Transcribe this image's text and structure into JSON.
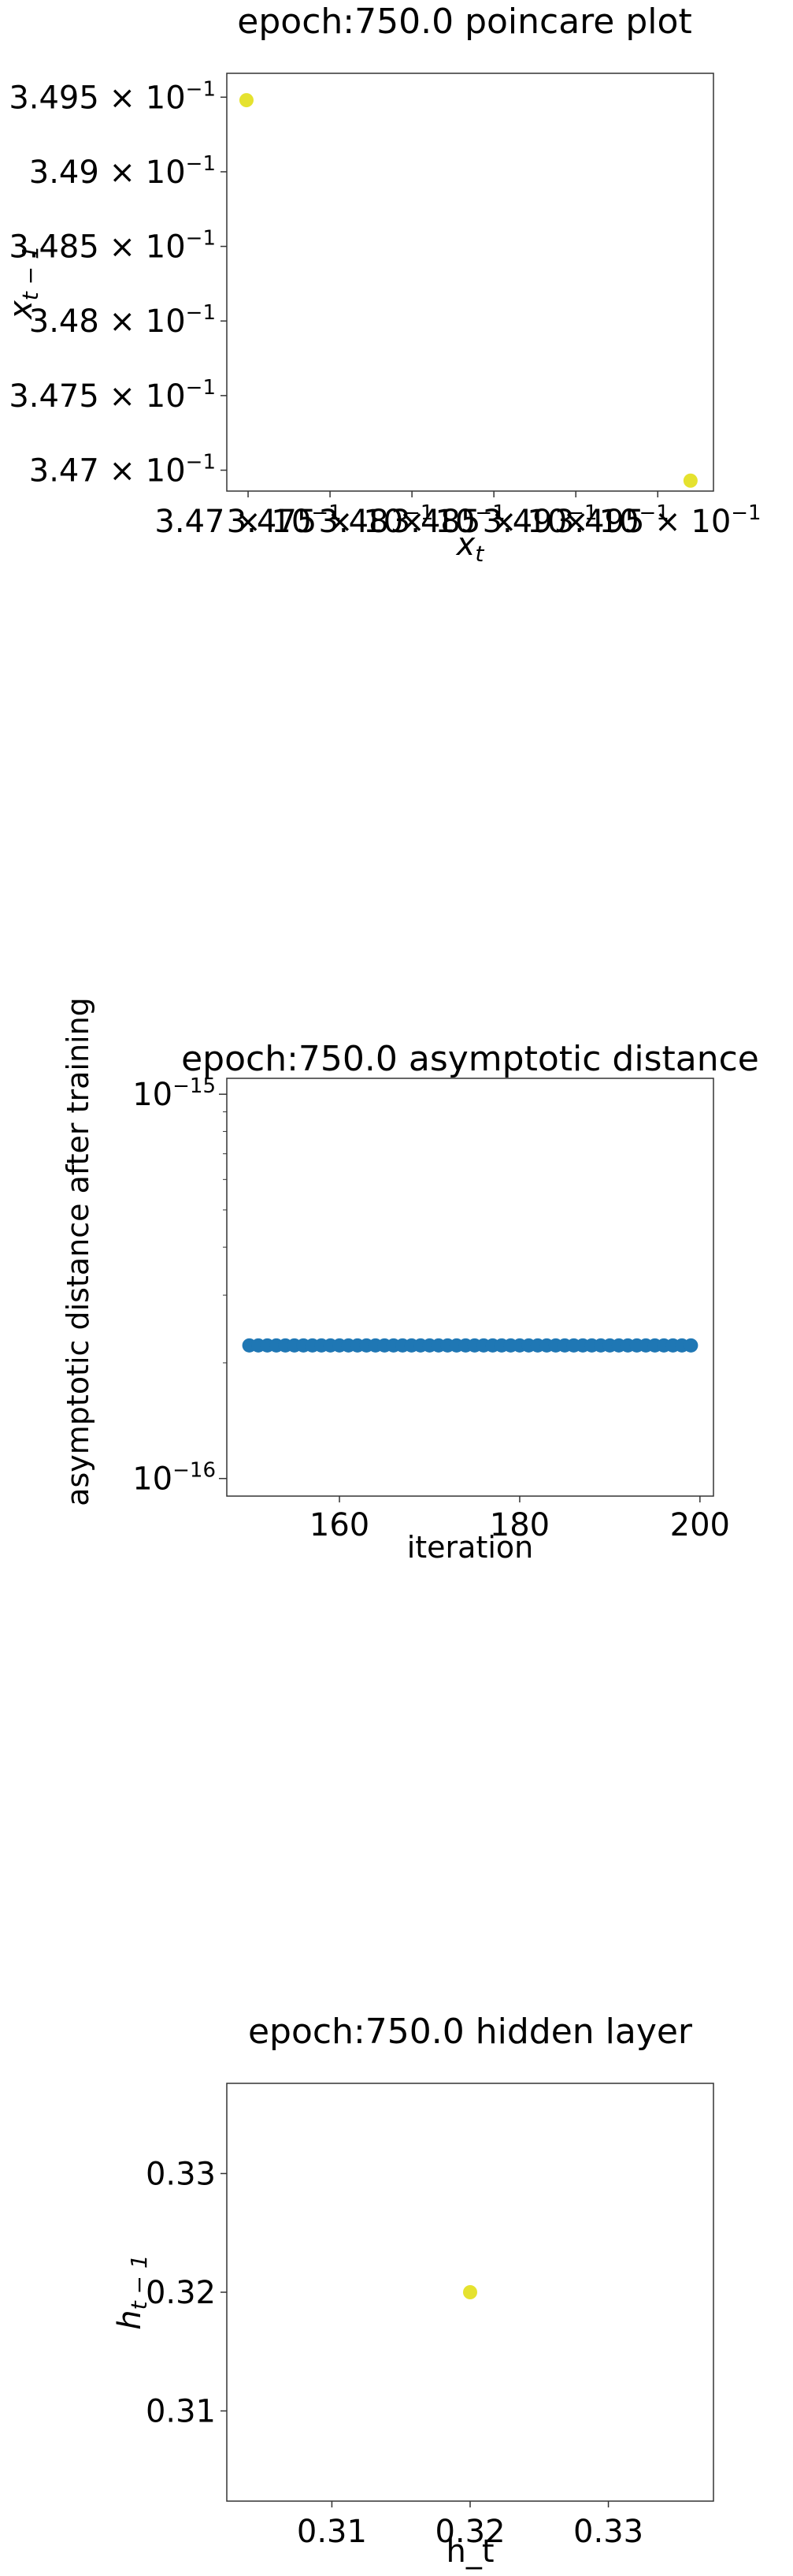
{
  "chart_data": [
    {
      "type": "scatter",
      "title": "epoch:750.0 poincare plot",
      "xlabel": "x_t",
      "ylabel": "x_{t-1}",
      "x_ticks": [
        {
          "value": 0.347,
          "label": "3.47 × 10^-1"
        },
        {
          "value": 0.3475,
          "label": "3.475 × 10^-1"
        },
        {
          "value": 0.348,
          "label": "3.48 × 10^-1"
        },
        {
          "value": 0.3485,
          "label": "3.485 × 10^-1"
        },
        {
          "value": 0.349,
          "label": "3.49 × 10^-1"
        },
        {
          "value": 0.3495,
          "label": "3.495 × 10^-1"
        }
      ],
      "y_ticks": [
        {
          "value": 0.347,
          "label": "3.47 × 10^-1"
        },
        {
          "value": 0.3475,
          "label": "3.475 × 10^-1"
        },
        {
          "value": 0.348,
          "label": "3.48 × 10^-1"
        },
        {
          "value": 0.3485,
          "label": "3.485 × 10^-1"
        },
        {
          "value": 0.349,
          "label": "3.49 × 10^-1"
        },
        {
          "value": 0.3495,
          "label": "3.495 × 10^-1"
        }
      ],
      "xlim": [
        0.34687,
        0.34984
      ],
      "ylim": [
        0.34686,
        0.34966
      ],
      "points": [
        {
          "x": 0.34699,
          "y": 0.34948
        },
        {
          "x": 0.3497,
          "y": 0.34693
        }
      ],
      "point_color": "#e5e22f",
      "grid": false
    },
    {
      "type": "scatter",
      "title": "epoch:750.0 asymptotic distance",
      "xlabel": "iteration",
      "ylabel": "asymptotic distance after training",
      "yscale": "log",
      "x_ticks": [
        160,
        180,
        200
      ],
      "y_ticks": [
        {
          "value": 1e-15,
          "label": "10^-15"
        },
        {
          "value": 1e-16,
          "label": "10^-16"
        }
      ],
      "xlim": [
        147.5,
        201.5
      ],
      "ylim": [
        9e-17,
        1.1e-15
      ],
      "x_start": 150,
      "x_end": 199,
      "y_value": 2.22e-16,
      "point_color": "#1f77b4",
      "grid": false
    },
    {
      "type": "scatter",
      "title": "epoch:750.0 hidden layer",
      "xlabel": "h_t",
      "ylabel": "h_{t-1}",
      "x_ticks": [
        0.31,
        0.32,
        0.33
      ],
      "y_ticks": [
        0.31,
        0.32,
        0.33
      ],
      "xlim": [
        0.3024,
        0.3376
      ],
      "ylim": [
        0.3024,
        0.3376
      ],
      "points": [
        {
          "x": 0.32,
          "y": 0.32
        }
      ],
      "point_color": "#e5e22f",
      "grid": false
    }
  ]
}
